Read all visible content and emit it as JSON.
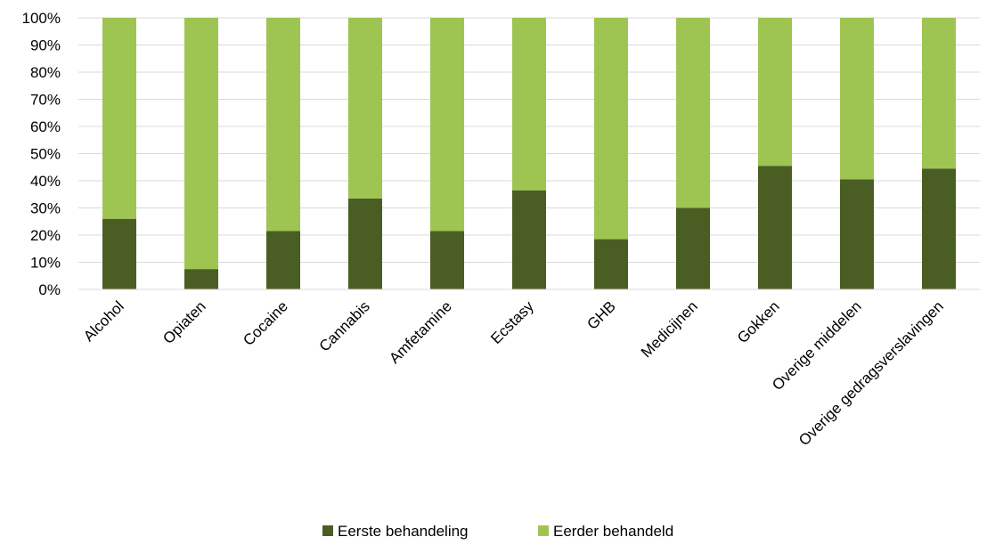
{
  "chart_data": {
    "type": "bar",
    "stacked": true,
    "categories": [
      "Alcohol",
      "Opiaten",
      "Cocaine",
      "Cannabis",
      "Amfetamine",
      "Ecstasy",
      "GHB",
      "Medicijnen",
      "Gokken",
      "Overige middelen",
      "Overige gedragsverslavingen"
    ],
    "series": [
      {
        "name": "Eerste behandeling",
        "color": "#4a5e23",
        "values": [
          26,
          7.5,
          21.5,
          33.5,
          21.5,
          36.5,
          18.5,
          30,
          45.5,
          40.5,
          44.5
        ]
      },
      {
        "name": "Eerder behandeld",
        "color": "#9ec552",
        "values": [
          74,
          92.5,
          78.5,
          66.5,
          78.5,
          63.5,
          81.5,
          70,
          54.5,
          59.5,
          55.5
        ]
      }
    ],
    "yticks": [
      "0%",
      "10%",
      "20%",
      "30%",
      "40%",
      "50%",
      "60%",
      "70%",
      "80%",
      "90%",
      "100%"
    ],
    "ylim": [
      0,
      100
    ],
    "grid": true,
    "legend_position": "bottom",
    "title": "",
    "xlabel": "",
    "ylabel": ""
  }
}
